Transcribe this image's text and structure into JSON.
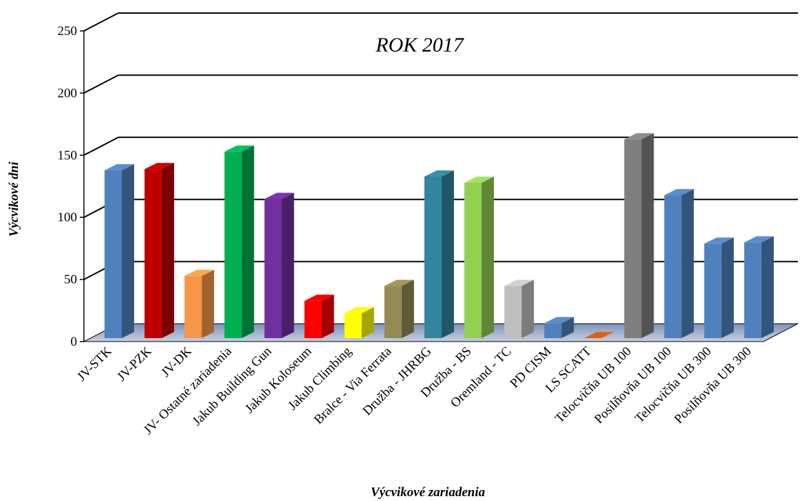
{
  "chart_data": {
    "type": "bar3d",
    "title": "ROK  2017",
    "y_label": "Výcvikové  dni",
    "x_label": "Výcvikové zariadenia",
    "categories": [
      "JV-STK",
      "JV-PZK",
      "JV-DK",
      "JV- Ostatné zariadenia",
      "Jakub Building Gun",
      "Jakub Koloseum",
      "Jakub Climbing",
      "Bralce - Via Ferrata",
      "Družba - JHRBG",
      "Družba - BS",
      "Oremland - TC",
      "PD CISM",
      "LS SCATT",
      "Telocvičňa UB 100",
      "Posilňovňa UB 100",
      "Telocvičňa UB 300",
      "Posilňovňa UB 300"
    ],
    "values": [
      135,
      136,
      50,
      150,
      112,
      30,
      20,
      42,
      130,
      125,
      42,
      12,
      0,
      160,
      115,
      76,
      77
    ],
    "colors": [
      "#4f81bd",
      "#c00000",
      "#f79646",
      "#00b050",
      "#7030a0",
      "#ff0000",
      "#ffff00",
      "#948a54",
      "#31859c",
      "#92d050",
      "#bfbfbf",
      "#4f81bd",
      "#c55a11",
      "#7f7f7f",
      "#4f81bd",
      "#4f81bd",
      "#4f81bd"
    ],
    "ylim": [
      0,
      250
    ],
    "yticks": [
      0,
      50,
      100,
      150,
      200,
      250
    ],
    "grid": true
  }
}
